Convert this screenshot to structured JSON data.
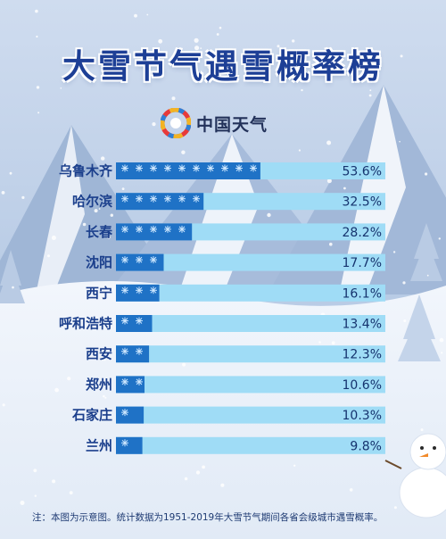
{
  "title": "大雪节气遇雪概率榜",
  "logo": {
    "text": "中国天气",
    "icon": "china-weather-logo-icon"
  },
  "note": "注：本图为示意图。统计数据为1951-2019年大雪节气期间各省会级城市遇雪概率。",
  "colors": {
    "title": "#1d3f96",
    "bar_track": "#9fdcf6",
    "bar_fill": "#1f72c6",
    "label": "#1b3f8c",
    "value": "#15336e"
  },
  "chart_data": {
    "type": "bar",
    "orientation": "horizontal",
    "title": "大雪节气遇雪概率榜",
    "unit": "%",
    "value_max": 100,
    "categories": [
      "乌鲁木齐",
      "哈尔滨",
      "长春",
      "沈阳",
      "西宁",
      "呼和浩特",
      "西安",
      "郑州",
      "石家庄",
      "兰州"
    ],
    "values": [
      53.6,
      32.5,
      28.2,
      17.7,
      16.1,
      13.4,
      12.3,
      10.6,
      10.3,
      9.8
    ],
    "value_labels": [
      "53.6%",
      "32.5%",
      "28.2%",
      "17.7%",
      "16.1%",
      "13.4%",
      "12.3%",
      "10.6%",
      "10.3%",
      "9.8%"
    ]
  }
}
